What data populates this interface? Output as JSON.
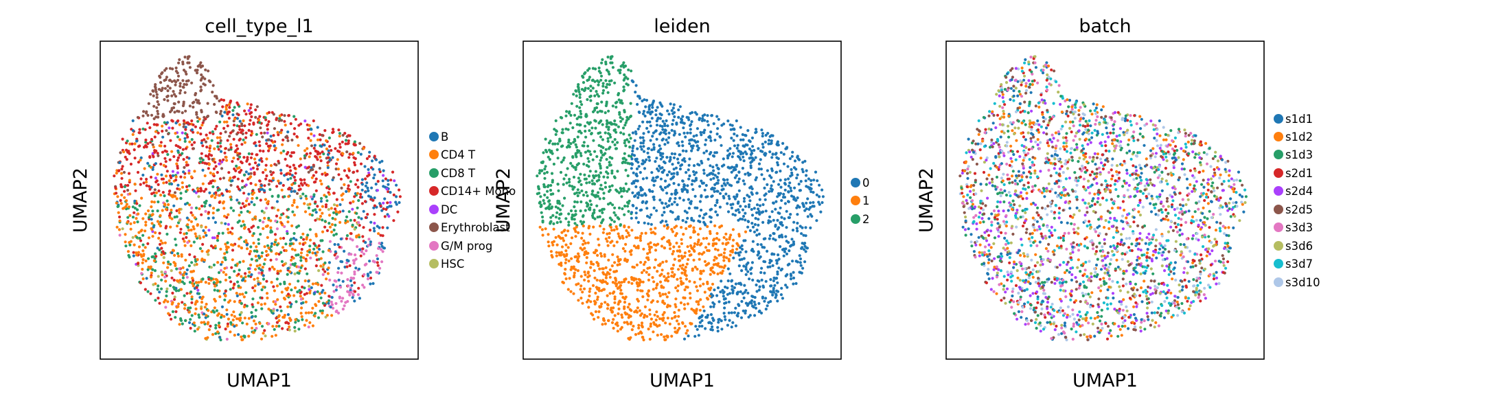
{
  "chart_data": [
    {
      "type": "scatter",
      "title": "cell_type_l1",
      "xlabel": "UMAP1",
      "ylabel": "UMAP2",
      "axis_ticks": "hidden",
      "grid": false,
      "legend_position": "right",
      "categories": [
        "B",
        "CD4 T",
        "CD8 T",
        "CD14+ Mono",
        "DC",
        "Erythroblast",
        "G/M prog",
        "HSC"
      ],
      "colors": [
        "#1f77b4",
        "#ff7f0e",
        "#279e68",
        "#d62728",
        "#aa40fc",
        "#8c564b",
        "#e377c2",
        "#b5bd61"
      ]
    },
    {
      "type": "scatter",
      "title": "leiden",
      "xlabel": "UMAP1",
      "ylabel": "UMAP2",
      "axis_ticks": "hidden",
      "grid": false,
      "legend_position": "right",
      "categories": [
        "0",
        "1",
        "2"
      ],
      "colors": [
        "#1f77b4",
        "#ff7f0e",
        "#279e68"
      ]
    },
    {
      "type": "scatter",
      "title": "batch",
      "xlabel": "UMAP1",
      "ylabel": "UMAP2",
      "axis_ticks": "hidden",
      "grid": false,
      "legend_position": "right",
      "categories": [
        "s1d1",
        "s1d2",
        "s1d3",
        "s2d1",
        "s2d4",
        "s2d5",
        "s3d3",
        "s3d6",
        "s3d7",
        "s3d10"
      ],
      "colors": [
        "#1f77b4",
        "#ff7f0e",
        "#279e68",
        "#d62728",
        "#aa40fc",
        "#8c564b",
        "#e377c2",
        "#b5bd61",
        "#17becf",
        "#aec7e8"
      ]
    }
  ]
}
